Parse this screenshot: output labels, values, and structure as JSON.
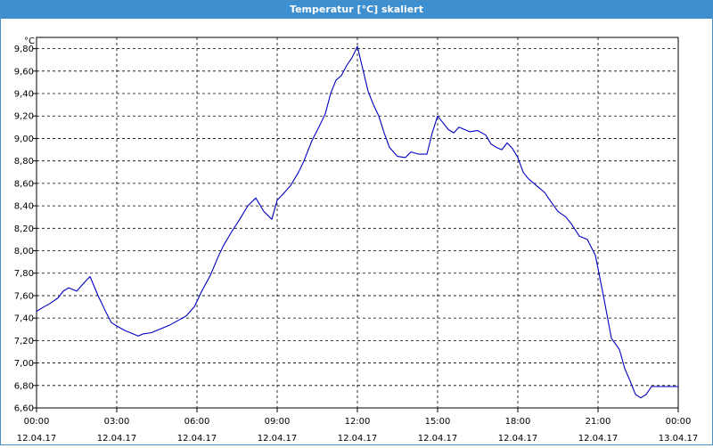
{
  "window": {
    "title": "Temperatur [°C] skaliert"
  },
  "chart_data": {
    "type": "line",
    "title": "Temperatur [°C] skaliert",
    "ylabel": "°C",
    "xlabel": "",
    "ylim": [
      6.6,
      9.9
    ],
    "xlim": [
      0,
      24
    ],
    "y_ticks": [
      "6,60",
      "6,80",
      "7,00",
      "7,20",
      "7,40",
      "7,60",
      "7,80",
      "8,00",
      "8,20",
      "8,40",
      "8,60",
      "8,80",
      "9,00",
      "9,20",
      "9,40",
      "9,60",
      "9,80"
    ],
    "x_ticks": [
      {
        "time": "00:00",
        "date": "12.04.17"
      },
      {
        "time": "03:00",
        "date": "12.04.17"
      },
      {
        "time": "06:00",
        "date": "12.04.17"
      },
      {
        "time": "09:00",
        "date": "12.04.17"
      },
      {
        "time": "12:00",
        "date": "12.04.17"
      },
      {
        "time": "15:00",
        "date": "12.04.17"
      },
      {
        "time": "18:00",
        "date": "12.04.17"
      },
      {
        "time": "21:00",
        "date": "12.04.17"
      },
      {
        "time": "00:00",
        "date": "13.04.17"
      }
    ],
    "grid": true,
    "line_color": "#0000c0",
    "series": [
      {
        "x": [
          0,
          0.2,
          0.5,
          0.8,
          1.0,
          1.2,
          1.5,
          1.8,
          2.0,
          2.3,
          2.6,
          2.8,
          3.0,
          3.3,
          3.6,
          3.8,
          4.0,
          4.3,
          4.6,
          5.0,
          5.3,
          5.6,
          5.9,
          6.2,
          6.5,
          6.8,
          7.0,
          7.3,
          7.6,
          7.9,
          8.2,
          8.5,
          8.8,
          9.0,
          9.2,
          9.5,
          9.8,
          10.0,
          10.3,
          10.6,
          10.8,
          11.0,
          11.2,
          11.4,
          11.6,
          11.8,
          12.0,
          12.2,
          12.4,
          12.6,
          12.8,
          13.0,
          13.2,
          13.5,
          13.8,
          14.0,
          14.3,
          14.6,
          14.8,
          15.0,
          15.2,
          15.4,
          15.6,
          15.8,
          16.0,
          16.2,
          16.5,
          16.8,
          17.0,
          17.2,
          17.4,
          17.6,
          17.8,
          18.0,
          18.2,
          18.4,
          18.6,
          18.8,
          19.0,
          19.2,
          19.5,
          19.8,
          20.0,
          20.3,
          20.6,
          20.9,
          21.2,
          21.5,
          21.8,
          22.0,
          22.2,
          22.4,
          22.6,
          22.8,
          23.0,
          23.2,
          23.4,
          23.6,
          23.8,
          24.0
        ],
        "y": [
          7.46,
          7.49,
          7.53,
          7.58,
          7.64,
          7.67,
          7.64,
          7.72,
          7.77,
          7.6,
          7.45,
          7.36,
          7.33,
          7.29,
          7.26,
          7.24,
          7.26,
          7.27,
          7.3,
          7.34,
          7.38,
          7.42,
          7.5,
          7.65,
          7.78,
          7.95,
          8.05,
          8.17,
          8.28,
          8.4,
          8.47,
          8.35,
          8.28,
          8.45,
          8.5,
          8.58,
          8.7,
          8.8,
          8.98,
          9.12,
          9.22,
          9.4,
          9.52,
          9.56,
          9.65,
          9.72,
          9.82,
          9.62,
          9.42,
          9.3,
          9.2,
          9.05,
          8.92,
          8.84,
          8.83,
          8.88,
          8.86,
          8.86,
          9.05,
          9.2,
          9.14,
          9.08,
          9.05,
          9.1,
          9.08,
          9.06,
          9.07,
          9.03,
          8.95,
          8.92,
          8.9,
          8.96,
          8.91,
          8.83,
          8.7,
          8.64,
          8.6,
          8.56,
          8.52,
          8.45,
          8.35,
          8.3,
          8.24,
          8.13,
          8.1,
          7.96,
          7.6,
          7.22,
          7.12,
          6.95,
          6.84,
          6.72,
          6.69,
          6.72,
          6.79,
          6.79,
          6.79,
          6.79,
          6.79,
          6.79
        ]
      }
    ]
  }
}
